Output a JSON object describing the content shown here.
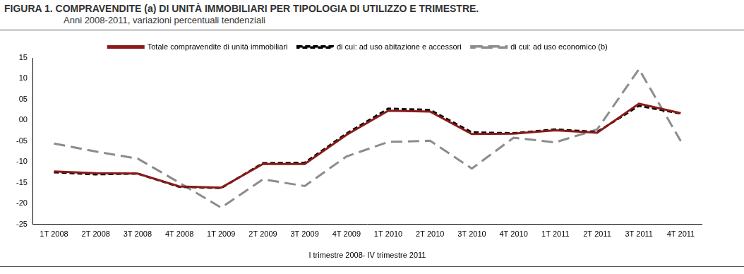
{
  "chart_data": {
    "type": "line",
    "title": "FIGURA 1. COMPRAVENDITE (a) DI UNITÀ IMMOBILIARI PER TIPOLOGIA DI UTILIZZO E TRIMESTRE.",
    "subtitle": "Anni 2008-2011, variazioni percentuali tendenziali",
    "x_label": "I trimestre 2008- IV trimestre 2011",
    "categories": [
      "1T 2008",
      "2T 2008",
      "3T 2008",
      "4T 2008",
      "1T 2009",
      "2T 2009",
      "3T 2009",
      "4T 2009",
      "1T 2010",
      "2T 2010",
      "3T 2010",
      "4T 2010",
      "1T 2011",
      "2T 2011",
      "3T 2011",
      "4T 2011"
    ],
    "series": [
      {
        "name": "Totale compravendite di unità immobiliari",
        "color": "#8b1a1a",
        "line_style": "solid",
        "values": [
          -12.3,
          -12.7,
          -12.8,
          -15.9,
          -16.2,
          -10.5,
          -10.5,
          -3.5,
          2.3,
          2.1,
          -3.3,
          -3.2,
          -2.4,
          -3.0,
          4.0,
          1.7
        ]
      },
      {
        "name": "di cui: ad uso abitazione e accessori",
        "color": "#000000",
        "line_style": "dashed",
        "values": [
          -12.5,
          -13.0,
          -12.8,
          -16.0,
          -16.3,
          -10.3,
          -10.2,
          -3.2,
          2.8,
          2.5,
          -2.9,
          -3.1,
          -2.2,
          -2.8,
          3.5,
          1.6
        ]
      },
      {
        "name": "di cui: ad uso economico (b)",
        "color": "#8c8c8c",
        "line_style": "longdash",
        "values": [
          -5.6,
          -7.5,
          -9.2,
          -15.0,
          -21.0,
          -14.2,
          -15.8,
          -8.7,
          -5.2,
          -4.9,
          -11.6,
          -4.2,
          -5.3,
          -2.2,
          12.3,
          -5.0
        ]
      }
    ],
    "ylim": [
      -25,
      15
    ],
    "yticks": [
      15,
      10,
      {
        "value": 5,
        "label": "05"
      },
      {
        "value": 0,
        "label": "00"
      },
      {
        "value": -5,
        "label": "-05"
      },
      -10,
      -15,
      -20,
      -25
    ],
    "grid": false,
    "legend": "top"
  }
}
